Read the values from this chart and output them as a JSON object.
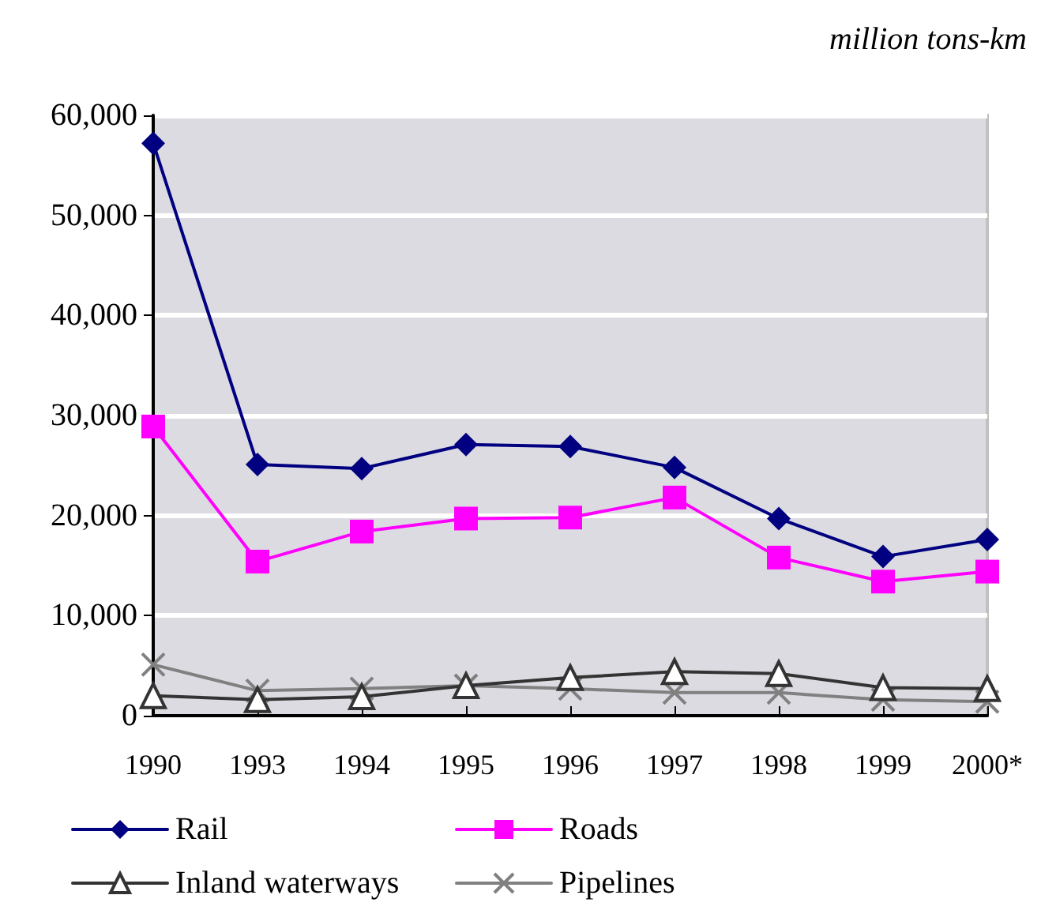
{
  "chart_data": {
    "type": "line",
    "ylabel": "million tons-km",
    "categories": [
      "1990",
      "1993",
      "1994",
      "1995",
      "1996",
      "1997",
      "1998",
      "1999",
      "2000*"
    ],
    "series": [
      {
        "name": "Rail",
        "color": "#000080",
        "marker": "diamond",
        "values": [
          57200,
          25100,
          24700,
          27100,
          26900,
          24800,
          19700,
          15900,
          17600
        ]
      },
      {
        "name": "Roads",
        "color": "#ff00ff",
        "marker": "square",
        "values": [
          28900,
          15400,
          18400,
          19700,
          19800,
          21800,
          15800,
          13400,
          14400
        ]
      },
      {
        "name": "Inland waterways",
        "color": "#333333",
        "marker": "triangle",
        "values": [
          2000,
          1600,
          1900,
          3000,
          3800,
          4400,
          4200,
          2800,
          2700
        ]
      },
      {
        "name": "Pipelines",
        "color": "#808080",
        "marker": "cross",
        "values": [
          5100,
          2500,
          2700,
          3000,
          2700,
          2300,
          2300,
          1600,
          1400
        ]
      }
    ],
    "ylim": [
      0,
      60000
    ],
    "yticks": [
      0,
      {
        "value": 10000,
        "label": "10,000"
      },
      {
        "value": 20000,
        "label": "20,000"
      },
      {
        "value": 30000,
        "label": "30,000"
      },
      {
        "value": 40000,
        "label": "40,000"
      },
      {
        "value": 50000,
        "label": "50,000"
      },
      {
        "value": 60000,
        "label": "60,000"
      }
    ],
    "grid": "y",
    "legend": "bottom",
    "line_style": "solid"
  }
}
